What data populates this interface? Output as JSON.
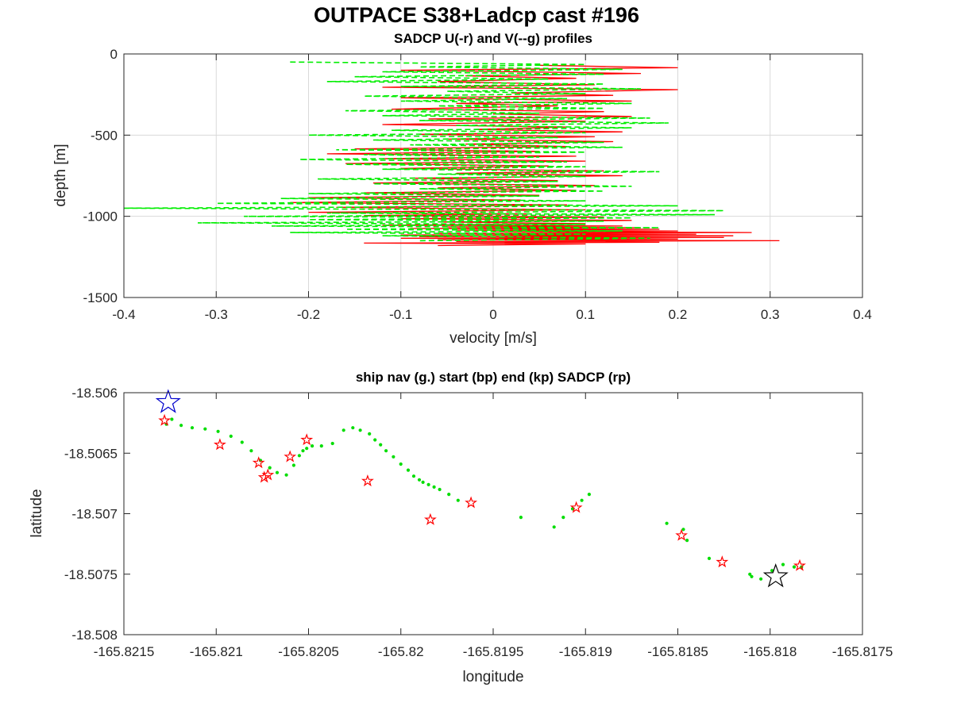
{
  "figure": {
    "suptitle": "OUTPACE S38+Ladcp cast #196",
    "colors": {
      "u": "#ff0000",
      "v": "#00ee00",
      "nav": "#00dd00",
      "sadcp": "#ff0000",
      "start": "#0000cc",
      "end": "#000000",
      "grid": "#d9d9d9"
    }
  },
  "chart_data": [
    {
      "type": "line",
      "title": "SADCP U(-r) and V(--g) profiles",
      "xlabel": "velocity [m/s]",
      "ylabel": "depth [m]",
      "xlim": [
        -0.4,
        0.4
      ],
      "ylim": [
        -1500,
        0
      ],
      "xticks": [
        -0.4,
        -0.3,
        -0.2,
        -0.1,
        0,
        0.1,
        0.2,
        0.3,
        0.4
      ],
      "xtick_labels": [
        "-0.4",
        "-0.3",
        "-0.2",
        "-0.1",
        "0",
        "0.1",
        "0.2",
        "0.3",
        "0.4"
      ],
      "yticks": [
        -1500,
        -1000,
        -500,
        0
      ],
      "ytick_labels": [
        "-1500",
        "-1000",
        "-500",
        "0"
      ],
      "grid": true,
      "series": [
        {
          "name": "U",
          "style": "solid red",
          "x": [
            0.05,
            0.2,
            -0.1,
            0.16,
            -0.03,
            0.09,
            -0.06,
            0.11,
            -0.12,
            0.2,
            0.02,
            0.13,
            -0.1,
            0.15,
            -0.04,
            0.07,
            -0.11,
            0.12,
            0.0,
            0.15,
            -0.07,
            0.1,
            -0.12,
            0.08,
            -0.02,
            0.14,
            -0.08,
            0.11,
            -0.05,
            0.13,
            -0.03,
            0.08,
            -0.15,
            0.05,
            -0.18,
            0.09,
            -0.12,
            0.1,
            -0.16,
            0.06,
            -0.1,
            0.12,
            -0.04,
            0.14,
            -0.09,
            0.07,
            -0.13,
            0.11,
            -0.06,
            0.09,
            -0.14,
            0.05,
            -0.2,
            0.03,
            -0.22,
            0.08,
            -0.17,
            0.1,
            -0.2,
            0.04,
            -0.14,
            0.12,
            -0.1,
            0.15,
            -0.06,
            0.1,
            -0.12,
            0.14,
            -0.05,
            0.16,
            -0.09,
            0.18,
            -0.04,
            0.2,
            0.0,
            0.28,
            -0.06,
            0.22,
            -0.1,
            0.26,
            -0.08,
            0.25,
            -0.1,
            0.2,
            -0.06,
            0.31,
            -0.04,
            0.18,
            -0.14,
            0.1,
            -0.06
          ],
          "y": [
            -70,
            -85,
            -100,
            -120,
            -135,
            -150,
            -170,
            -190,
            -205,
            -220,
            -240,
            -255,
            -270,
            -290,
            -305,
            -320,
            -340,
            -355,
            -370,
            -385,
            -400,
            -415,
            -435,
            -450,
            -465,
            -480,
            -495,
            -510,
            -525,
            -540,
            -555,
            -570,
            -585,
            -600,
            -615,
            -630,
            -645,
            -660,
            -675,
            -690,
            -705,
            -720,
            -735,
            -750,
            -765,
            -780,
            -795,
            -810,
            -825,
            -840,
            -855,
            -870,
            -885,
            -900,
            -915,
            -930,
            -945,
            -960,
            -975,
            -985,
            -995,
            -1005,
            -1015,
            -1025,
            -1035,
            -1045,
            -1055,
            -1060,
            -1065,
            -1070,
            -1075,
            -1080,
            -1085,
            -1090,
            -1095,
            -1100,
            -1105,
            -1110,
            -1115,
            -1120,
            -1125,
            -1130,
            -1135,
            -1140,
            -1145,
            -1150,
            -1155,
            -1160,
            -1165,
            -1170,
            -1180
          ]
        },
        {
          "name": "V",
          "style": "dashed green",
          "x": [
            -0.22,
            0.1,
            -0.08,
            0.14,
            -0.12,
            0.12,
            -0.15,
            0.06,
            -0.18,
            0.12,
            -0.1,
            0.16,
            -0.05,
            0.1,
            -0.14,
            0.08,
            -0.1,
            0.15,
            -0.06,
            0.12,
            -0.16,
            0.05,
            -0.12,
            0.17,
            -0.08,
            0.19,
            -0.04,
            0.15,
            -0.11,
            0.1,
            -0.2,
            0.07,
            -0.13,
            0.12,
            -0.09,
            0.14,
            -0.17,
            0.1,
            -0.14,
            0.05,
            -0.21,
            0.08,
            -0.16,
            0.1,
            -0.12,
            0.18,
            -0.06,
            0.1,
            -0.19,
            0.07,
            -0.13,
            0.15,
            -0.08,
            0.12,
            -0.2,
            0.05,
            -0.23,
            0.1,
            -0.3,
            0.2,
            -0.4,
            0.25,
            -0.18,
            0.24,
            -0.27,
            0.15,
            -0.2,
            0.12,
            -0.32,
            0.1,
            -0.24,
            0.18,
            -0.16,
            0.14,
            -0.22,
            0.1,
            -0.12,
            0.17,
            -0.08
          ],
          "y": [
            -50,
            -65,
            -80,
            -95,
            -110,
            -125,
            -140,
            -155,
            -170,
            -185,
            -200,
            -215,
            -230,
            -245,
            -260,
            -275,
            -290,
            -305,
            -320,
            -335,
            -350,
            -365,
            -380,
            -395,
            -410,
            -425,
            -440,
            -455,
            -470,
            -485,
            -500,
            -515,
            -530,
            -545,
            -560,
            -575,
            -590,
            -605,
            -620,
            -635,
            -650,
            -665,
            -680,
            -695,
            -710,
            -725,
            -740,
            -755,
            -770,
            -785,
            -800,
            -815,
            -830,
            -845,
            -860,
            -875,
            -890,
            -905,
            -920,
            -935,
            -950,
            -965,
            -980,
            -990,
            -1000,
            -1010,
            -1020,
            -1030,
            -1040,
            -1050,
            -1060,
            -1070,
            -1080,
            -1090,
            -1100,
            -1110,
            -1120,
            -1135,
            -1150
          ]
        }
      ]
    },
    {
      "type": "scatter",
      "title": "ship nav (g.) start (bp) end (kp) SADCP (rp)",
      "xlabel": "longitude",
      "ylabel": "latitude",
      "xlim": [
        -165.8215,
        -165.8175
      ],
      "ylim": [
        -18.508,
        -18.506
      ],
      "xticks": [
        -165.8215,
        -165.821,
        -165.8205,
        -165.82,
        -165.8195,
        -165.819,
        -165.8185,
        -165.818,
        -165.8175
      ],
      "xtick_labels": [
        "-165.8215",
        "-165.821",
        "-165.8205",
        "-165.82",
        "-165.8195",
        "-165.819",
        "-165.8185",
        "-165.818",
        "-165.8175"
      ],
      "yticks": [
        -18.508,
        -18.5075,
        -18.507,
        -18.5065,
        -18.506
      ],
      "ytick_labels": [
        "-18.508",
        "-18.5075",
        "-18.507",
        "-18.5065",
        "-18.506"
      ],
      "grid": false,
      "series": [
        {
          "name": "ship nav",
          "marker": "green dot",
          "lon": [
            -165.82127,
            -165.82124,
            -165.82119,
            -165.82113,
            -165.82106,
            -165.82099,
            -165.82092,
            -165.82086,
            -165.82081,
            -165.82076,
            -165.82071,
            -165.82067,
            -165.82062,
            -165.82058,
            -165.82055,
            -165.82053,
            -165.82051,
            -165.82048,
            -165.82043,
            -165.82037,
            -165.82031,
            -165.82026,
            -165.82022,
            -165.82017,
            -165.82014,
            -165.82011,
            -165.82008,
            -165.82004,
            -165.82,
            -165.81996,
            -165.81993,
            -165.8199,
            -165.81988,
            -165.81985,
            -165.81982,
            -165.81979,
            -165.81974,
            -165.81969,
            -165.81935,
            -165.81917,
            -165.81912,
            -165.81907,
            -165.81902,
            -165.81898,
            -165.81856,
            -165.81847,
            -165.81845,
            -165.81833,
            -165.81811,
            -165.8181,
            -165.81805,
            -165.81799,
            -165.81793,
            -165.81787,
            -165.81783
          ],
          "lat": [
            -18.50626,
            -18.50622,
            -18.50627,
            -18.50629,
            -18.5063,
            -18.50632,
            -18.50636,
            -18.50641,
            -18.50648,
            -18.50656,
            -18.50662,
            -18.50666,
            -18.50668,
            -18.5066,
            -18.50652,
            -18.50648,
            -18.50646,
            -18.50644,
            -18.50644,
            -18.50642,
            -18.50631,
            -18.50629,
            -18.50631,
            -18.50634,
            -18.50639,
            -18.50643,
            -18.50648,
            -18.50653,
            -18.50659,
            -18.50664,
            -18.50669,
            -18.50672,
            -18.50674,
            -18.50676,
            -18.50678,
            -18.5068,
            -18.50684,
            -18.50689,
            -18.50703,
            -18.50711,
            -18.50703,
            -18.50696,
            -18.50689,
            -18.50684,
            -18.50708,
            -18.50713,
            -18.50722,
            -18.50737,
            -18.5075,
            -18.50752,
            -18.50754,
            -18.50747,
            -18.50742,
            -18.50744,
            -18.50744
          ]
        },
        {
          "name": "SADCP",
          "marker": "red pentagram",
          "lon": [
            -165.82128,
            -165.82098,
            -165.82077,
            -165.82074,
            -165.82072,
            -165.8206,
            -165.82051,
            -165.82018,
            -165.81984,
            -165.81962,
            -165.81905,
            -165.81848,
            -165.81826,
            -165.81784
          ],
          "lat": [
            -18.50623,
            -18.50643,
            -18.50658,
            -18.5067,
            -18.50668,
            -18.50653,
            -18.50639,
            -18.50673,
            -18.50705,
            -18.50691,
            -18.50695,
            -18.50718,
            -18.5074,
            -18.50743
          ]
        },
        {
          "name": "start",
          "marker": "blue pentagram",
          "lon": [
            -165.82126
          ],
          "lat": [
            -18.50608
          ]
        },
        {
          "name": "end",
          "marker": "black pentagram",
          "lon": [
            -165.81797
          ],
          "lat": [
            -18.50752
          ]
        }
      ]
    }
  ]
}
